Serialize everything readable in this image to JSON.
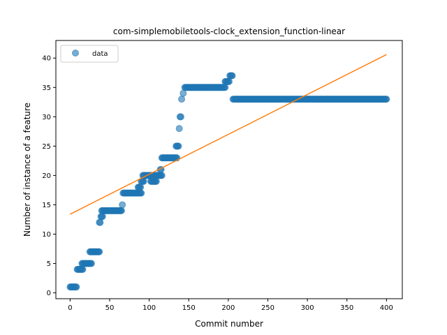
{
  "chart_data": {
    "type": "scatter",
    "title": "com-simplemobiletools-clock_extension_function-linear",
    "xlabel": "Commit number",
    "ylabel": "Number of instance of a feature",
    "xlim": [
      -18,
      420
    ],
    "ylim": [
      -1,
      43
    ],
    "xticks": [
      0,
      50,
      100,
      150,
      200,
      250,
      300,
      350,
      400
    ],
    "yticks": [
      0,
      5,
      10,
      15,
      20,
      25,
      30,
      35,
      40
    ],
    "legend": {
      "position": "top-left",
      "label": "data"
    },
    "colors": {
      "points": "#1f77b4",
      "fit_line": "#ff7f0e"
    },
    "series": [
      {
        "name": "data",
        "kind": "scatter",
        "segments": [
          [
            0,
            8,
            1
          ],
          [
            9,
            16,
            4
          ],
          [
            15,
            27,
            5
          ],
          [
            25,
            37,
            7
          ],
          [
            37,
            38,
            12
          ],
          [
            39,
            41,
            13
          ],
          [
            40,
            65,
            14
          ],
          [
            66,
            66,
            15
          ],
          [
            67,
            90,
            17
          ],
          [
            86,
            89,
            18
          ],
          [
            90,
            93,
            19
          ],
          [
            92,
            103,
            20
          ],
          [
            102,
            109,
            19
          ],
          [
            104,
            116,
            20
          ],
          [
            114,
            115,
            21
          ],
          [
            116,
            135,
            23
          ],
          [
            134,
            137,
            25
          ],
          [
            138,
            138,
            28
          ],
          [
            139,
            140,
            30
          ],
          [
            141,
            141,
            33
          ],
          [
            143,
            143,
            34
          ],
          [
            145,
            196,
            35
          ],
          [
            196,
            201,
            36
          ],
          [
            202,
            205,
            37
          ],
          [
            206,
            400,
            33
          ]
        ]
      },
      {
        "name": "linear fit",
        "kind": "line",
        "x": [
          0,
          400
        ],
        "y": [
          13.4,
          40.6
        ]
      }
    ]
  }
}
